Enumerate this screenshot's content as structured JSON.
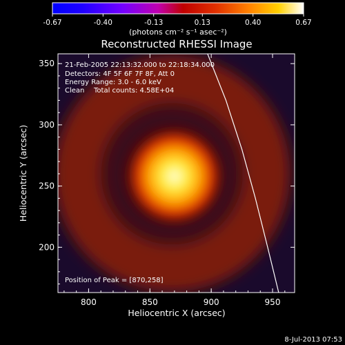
{
  "chart_data": {
    "type": "heatmap",
    "title": "Reconstructed RHESSI Image",
    "xlabel": "Heliocentric X (arcsec)",
    "ylabel": "Heliocentric Y (arcsec)",
    "xlim": [
      775,
      968
    ],
    "ylim": [
      163,
      358
    ],
    "x_ticks": [
      800,
      850,
      900,
      950
    ],
    "y_ticks": [
      200,
      250,
      300,
      350
    ],
    "colorbar": {
      "min": -0.67,
      "max": 0.67,
      "ticks": [
        "-0.67",
        "-0.40",
        "-0.13",
        "0.13",
        "0.40",
        "0.67"
      ],
      "tick_values": [
        -0.67,
        -0.4,
        -0.13,
        0.13,
        0.4,
        0.67
      ],
      "unit_label": "(photons cm⁻² s⁻¹ asec⁻²)"
    },
    "annotations": {
      "time_range": "21-Feb-2005 22:13:32.000 to 22:18:34.000",
      "detectors": "Detectors: 4F 5F 6F 7F 8F, Att 0",
      "energy_range": "Energy Range: 3.0 - 6.0 keV",
      "clean_label": "Clean",
      "total_counts": "Total counts: 4.58E+04",
      "peak": "Position of Peak = [870,258]"
    },
    "peak_position": [
      870,
      258
    ],
    "peak_value": 0.67,
    "ring": {
      "center": [
        868,
        260
      ],
      "radius": 77,
      "value": 0.16
    },
    "limb_curve": [
      [
        897,
        358
      ],
      [
        912,
        320
      ],
      [
        925,
        280
      ],
      [
        936,
        240
      ],
      [
        946,
        200
      ],
      [
        955,
        163
      ]
    ]
  },
  "footer": {
    "date_stamp": "8-Jul-2013 07:53"
  }
}
